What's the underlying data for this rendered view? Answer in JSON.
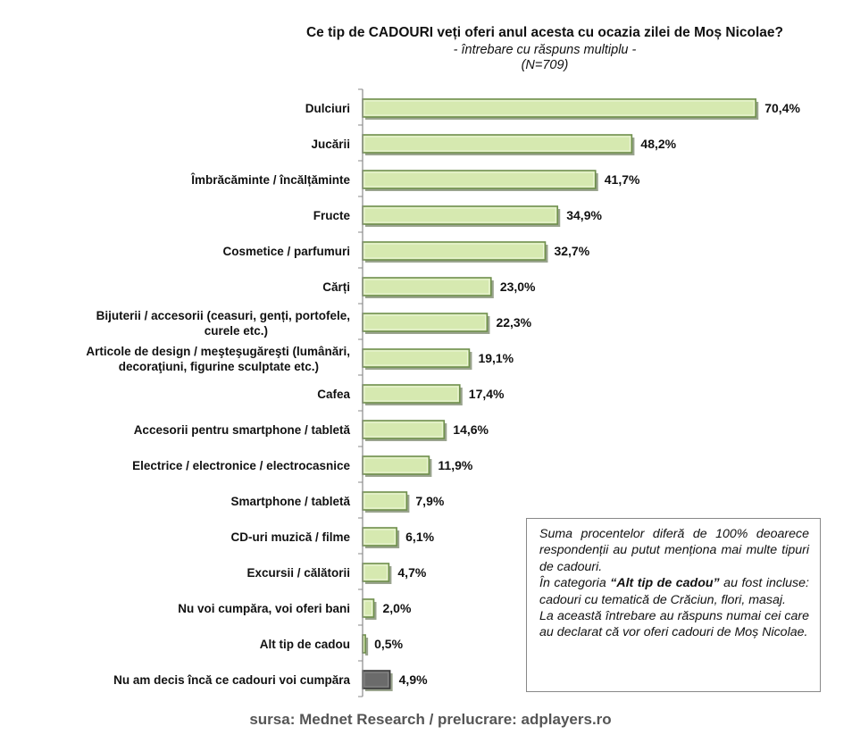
{
  "chart_data": {
    "type": "bar",
    "orientation": "horizontal",
    "title": "Ce tip de CADOURI veți oferi anul acesta cu ocazia zilei de Moș Nicolae?",
    "subtitle": "- întrebare cu răspuns multiplu -",
    "sample_note": "(N=709)",
    "categories": [
      [
        "Dulciuri"
      ],
      [
        "Jucării"
      ],
      [
        "Îmbrăcăminte / încălțăminte"
      ],
      [
        "Fructe"
      ],
      [
        "Cosmetice / parfumuri"
      ],
      [
        "Cărți"
      ],
      [
        "Bijuterii / accesorii (ceasuri, genți, portofele,",
        "curele etc.)"
      ],
      [
        "Articole de design / meşteşugăreşti (lumânări,",
        "decoraţiuni, figurine sculptate etc.)"
      ],
      [
        "Cafea"
      ],
      [
        "Accesorii pentru smartphone / tabletă"
      ],
      [
        "Electrice / electronice / electrocasnice"
      ],
      [
        "Smartphone / tabletă"
      ],
      [
        "CD-uri muzică / filme"
      ],
      [
        "Excursii / călătorii"
      ],
      [
        "Nu voi cumpăra, voi oferi bani"
      ],
      [
        "Alt tip de cadou"
      ],
      [
        "Nu am decis încă ce cadouri voi cumpăra"
      ]
    ],
    "values": [
      70.4,
      48.2,
      41.7,
      34.9,
      32.7,
      23.0,
      22.3,
      19.1,
      17.4,
      14.6,
      11.9,
      7.9,
      6.1,
      4.7,
      2.0,
      0.5,
      4.9
    ],
    "value_labels": [
      "70,4%",
      "48,2%",
      "41,7%",
      "34,9%",
      "32,7%",
      "23,0%",
      "22,3%",
      "19,1%",
      "17,4%",
      "14,6%",
      "11,9%",
      "7,9%",
      "6,1%",
      "4,7%",
      "2,0%",
      "0,5%",
      "4,9%"
    ],
    "highlight_index": 16,
    "xlim": [
      0,
      75
    ],
    "grid": false,
    "colors": {
      "bar_fill": "#d6e9b0",
      "bar_edge": "#6f8f4e",
      "bar_shadow": "#9aa48e",
      "highlight_fill": "#6b6b6b",
      "highlight_edge": "#3a3a3a",
      "axis": "#8a8a8a"
    }
  },
  "note": {
    "lines": [
      "Suma procentelor diferă de 100% deoarece respondenții au putut menționa mai multe tipuri de cadouri."
    ],
    "category_prefix": "În categoria ",
    "category_name": "“Alt tip de cadou”",
    "category_suffix": " au fost incluse: cadouri cu tematică de Crăciun, flori, masaj.",
    "closing": "La această întrebare au răspuns numai cei care au declarat că vor oferi cadouri de Moș Nicolae."
  },
  "source": "sursa: Mednet Research / prelucrare: adplayers.ro"
}
